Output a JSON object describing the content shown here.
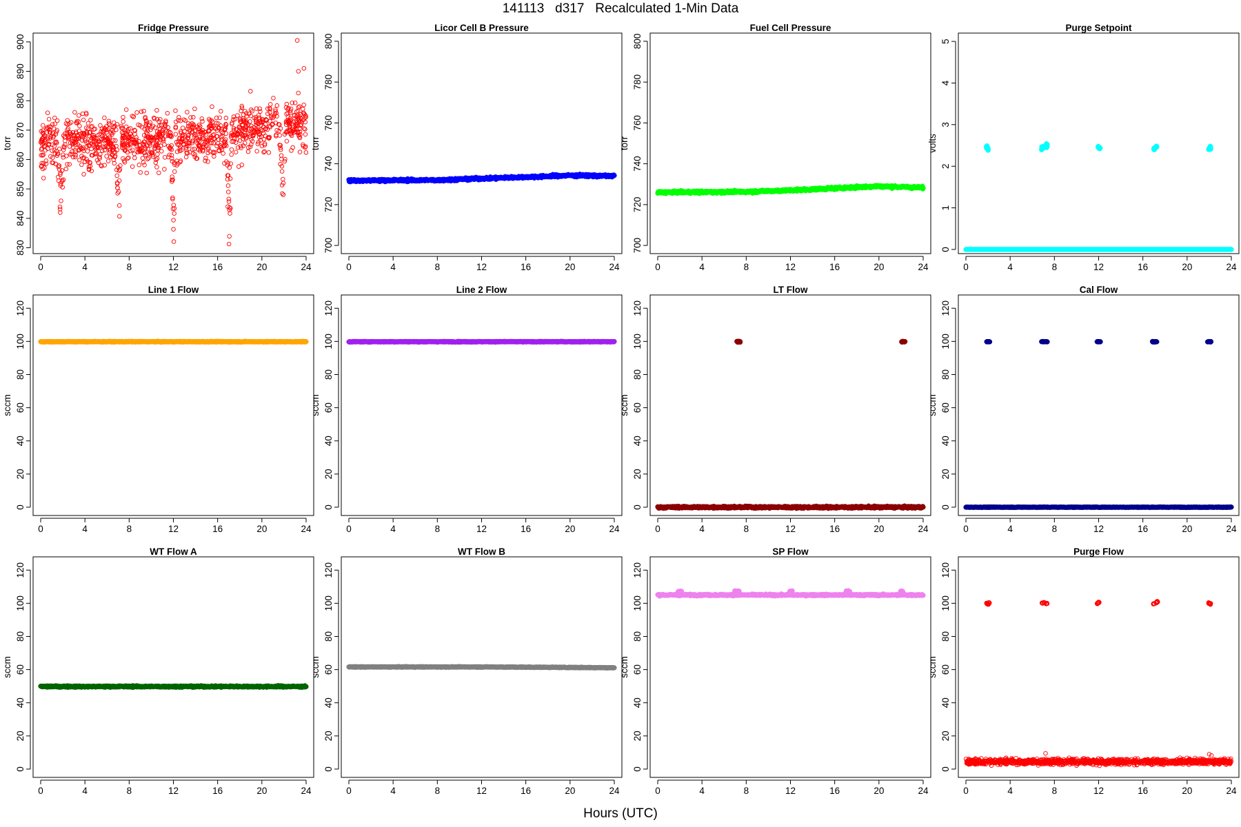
{
  "figure": {
    "title": "141113   d317   Recalculated 1-Min Data",
    "xlabel": "Hours (UTC)"
  },
  "chart_data": [
    {
      "type": "scatter",
      "title": "Fridge Pressure",
      "ylabel": "torr",
      "color": "#ff0000",
      "marker": "open-circle",
      "xlim": [
        0,
        24
      ],
      "xticks": [
        0,
        4,
        8,
        12,
        16,
        20,
        24
      ],
      "ylim": [
        828,
        903
      ],
      "yticks": [
        830,
        840,
        850,
        860,
        870,
        880,
        890,
        900
      ],
      "series": [
        {
          "kind": "noisy",
          "base": [
            [
              0,
              866
            ],
            [
              6,
              866
            ],
            [
              12,
              867
            ],
            [
              16,
              868
            ],
            [
              20,
              872
            ],
            [
              24,
              872
            ]
          ],
          "noise": 6,
          "dips": [
            [
              1.5,
              2.2,
              836
            ],
            [
              6.8,
              7.3,
              835
            ],
            [
              11.8,
              12.2,
              830
            ],
            [
              16.8,
              17.3,
              830
            ],
            [
              21.6,
              22.2,
              837
            ]
          ],
          "extras": [
            [
              23.2,
              900.5
            ],
            [
              23.8,
              891
            ],
            [
              23.3,
              890
            ]
          ]
        }
      ]
    },
    {
      "type": "scatter",
      "title": "Licor Cell B Pressure",
      "ylabel": "torr",
      "color": "#0000ff",
      "marker": "filled",
      "xlim": [
        0,
        24
      ],
      "xticks": [
        0,
        4,
        8,
        12,
        16,
        20,
        24
      ],
      "ylim": [
        696,
        804
      ],
      "yticks": [
        700,
        720,
        740,
        760,
        780,
        800
      ],
      "series": [
        {
          "kind": "line",
          "points": [
            [
              0,
              731.8
            ],
            [
              8,
              732.0
            ],
            [
              12,
              732.8
            ],
            [
              16,
              733.5
            ],
            [
              20,
              734.3
            ],
            [
              24,
              734.0
            ]
          ],
          "noise": 0.4
        }
      ]
    },
    {
      "type": "scatter",
      "title": "Fuel Cell Pressure",
      "ylabel": "torr",
      "color": "#00ff00",
      "marker": "filled",
      "xlim": [
        0,
        24
      ],
      "xticks": [
        0,
        4,
        8,
        12,
        16,
        20,
        24
      ],
      "ylim": [
        696,
        804
      ],
      "yticks": [
        700,
        720,
        740,
        760,
        780,
        800
      ],
      "series": [
        {
          "kind": "line",
          "points": [
            [
              0,
              726.0
            ],
            [
              8,
              726.3
            ],
            [
              12,
              727.0
            ],
            [
              16,
              728.0
            ],
            [
              20,
              729.0
            ],
            [
              24,
              728.3
            ]
          ],
          "noise": 0.4
        }
      ]
    },
    {
      "type": "scatter",
      "title": "Purge Setpoint",
      "ylabel": "volts",
      "color": "#00ffff",
      "marker": "filled",
      "xlim": [
        0,
        24
      ],
      "xticks": [
        0,
        4,
        8,
        12,
        16,
        20,
        24
      ],
      "ylim": [
        -0.1,
        5.2
      ],
      "yticks": [
        0,
        1,
        2,
        3,
        4,
        5
      ],
      "series": [
        {
          "kind": "line",
          "points": [
            [
              0,
              0
            ],
            [
              24,
              0
            ]
          ],
          "noise": 0
        },
        {
          "kind": "clusters",
          "noise": 0.03,
          "points": [
            [
              1.9,
              2.45
            ],
            [
              2.0,
              2.42
            ],
            [
              6.9,
              2.42
            ],
            [
              7.1,
              2.45
            ],
            [
              7.3,
              2.5
            ],
            [
              12.0,
              2.45
            ],
            [
              12.1,
              2.43
            ],
            [
              17.0,
              2.42
            ],
            [
              17.2,
              2.47
            ],
            [
              22.0,
              2.42
            ],
            [
              22.1,
              2.44
            ]
          ]
        }
      ]
    },
    {
      "type": "scatter",
      "title": "Line 1 Flow",
      "ylabel": "sccm",
      "color": "#ffa500",
      "marker": "filled",
      "xlim": [
        0,
        24
      ],
      "xticks": [
        0,
        4,
        8,
        12,
        16,
        20,
        24
      ],
      "ylim": [
        -5,
        128
      ],
      "yticks": [
        0,
        20,
        40,
        60,
        80,
        100,
        120
      ],
      "series": [
        {
          "kind": "line",
          "points": [
            [
              0,
              99.8
            ],
            [
              24,
              99.8
            ]
          ],
          "noise": 0.15
        }
      ]
    },
    {
      "type": "scatter",
      "title": "Line 2 Flow",
      "ylabel": "sccm",
      "color": "#a020f0",
      "marker": "filled",
      "xlim": [
        0,
        24
      ],
      "xticks": [
        0,
        4,
        8,
        12,
        16,
        20,
        24
      ],
      "ylim": [
        -5,
        128
      ],
      "yticks": [
        0,
        20,
        40,
        60,
        80,
        100,
        120
      ],
      "series": [
        {
          "kind": "line",
          "points": [
            [
              0,
              99.8
            ],
            [
              24,
              99.8
            ]
          ],
          "noise": 0.15
        }
      ]
    },
    {
      "type": "scatter",
      "title": "LT Flow",
      "ylabel": "sccm",
      "color": "#8b0000",
      "marker": "filled",
      "xlim": [
        0,
        24
      ],
      "xticks": [
        0,
        4,
        8,
        12,
        16,
        20,
        24
      ],
      "ylim": [
        -5,
        128
      ],
      "yticks": [
        0,
        20,
        40,
        60,
        80,
        100,
        120
      ],
      "series": [
        {
          "kind": "line",
          "points": [
            [
              0,
              0
            ],
            [
              24,
              0
            ]
          ],
          "noise": 0.4
        },
        {
          "kind": "clusters",
          "noise": 0.2,
          "points": [
            [
              7.2,
              99.8
            ],
            [
              7.3,
              99.8
            ],
            [
              7.4,
              99.8
            ],
            [
              22.1,
              99.8
            ],
            [
              22.2,
              99.8
            ],
            [
              22.3,
              99.8
            ]
          ]
        }
      ]
    },
    {
      "type": "scatter",
      "title": "Cal Flow",
      "ylabel": "sccm",
      "color": "#00008b",
      "marker": "filled",
      "xlim": [
        0,
        24
      ],
      "xticks": [
        0,
        4,
        8,
        12,
        16,
        20,
        24
      ],
      "ylim": [
        -5,
        128
      ],
      "yticks": [
        0,
        20,
        40,
        60,
        80,
        100,
        120
      ],
      "series": [
        {
          "kind": "line",
          "points": [
            [
              0,
              0
            ],
            [
              24,
              0
            ]
          ],
          "noise": 0.1
        },
        {
          "kind": "clusters",
          "noise": 0.1,
          "points": [
            [
              1.9,
              99.8
            ],
            [
              2.0,
              99.8
            ],
            [
              2.1,
              99.8
            ],
            [
              6.9,
              99.8
            ],
            [
              7.0,
              99.8
            ],
            [
              7.1,
              99.8
            ],
            [
              7.3,
              99.8
            ],
            [
              11.9,
              99.8
            ],
            [
              12.0,
              99.8
            ],
            [
              12.1,
              99.8
            ],
            [
              16.9,
              99.8
            ],
            [
              17.0,
              99.8
            ],
            [
              17.1,
              99.8
            ],
            [
              17.2,
              99.8
            ],
            [
              21.9,
              99.8
            ],
            [
              22.0,
              99.8
            ],
            [
              22.1,
              99.8
            ]
          ]
        }
      ]
    },
    {
      "type": "scatter",
      "title": "WT Flow A",
      "ylabel": "sccm",
      "color": "#006400",
      "marker": "filled",
      "xlim": [
        0,
        24
      ],
      "xticks": [
        0,
        4,
        8,
        12,
        16,
        20,
        24
      ],
      "ylim": [
        -5,
        128
      ],
      "yticks": [
        0,
        20,
        40,
        60,
        80,
        100,
        120
      ],
      "series": [
        {
          "kind": "line",
          "points": [
            [
              0,
              49.8
            ],
            [
              24,
              49.8
            ]
          ],
          "noise": 0.3
        }
      ]
    },
    {
      "type": "scatter",
      "title": "WT Flow B",
      "ylabel": "sccm",
      "color": "#808080",
      "marker": "filled",
      "xlim": [
        0,
        24
      ],
      "xticks": [
        0,
        4,
        8,
        12,
        16,
        20,
        24
      ],
      "ylim": [
        -5,
        128
      ],
      "yticks": [
        0,
        20,
        40,
        60,
        80,
        100,
        120
      ],
      "series": [
        {
          "kind": "line",
          "points": [
            [
              0,
              61.6
            ],
            [
              12,
              61.6
            ],
            [
              18,
              61.4
            ],
            [
              24,
              61.1
            ]
          ],
          "noise": 0.15
        }
      ]
    },
    {
      "type": "scatter",
      "title": "SP Flow",
      "ylabel": "sccm",
      "color": "#ee82ee",
      "marker": "filled",
      "xlim": [
        0,
        24
      ],
      "xticks": [
        0,
        4,
        8,
        12,
        16,
        20,
        24
      ],
      "ylim": [
        -5,
        128
      ],
      "yticks": [
        0,
        20,
        40,
        60,
        80,
        100,
        120
      ],
      "series": [
        {
          "kind": "line",
          "points": [
            [
              0,
              105
            ],
            [
              24,
              105
            ]
          ],
          "noise": 0.3
        },
        {
          "kind": "clusters",
          "noise": 0.2,
          "points": [
            [
              1.9,
              107
            ],
            [
              2.0,
              107.2
            ],
            [
              2.1,
              107.1
            ],
            [
              7.0,
              107.2
            ],
            [
              7.2,
              107.3
            ],
            [
              7.3,
              107.1
            ],
            [
              12.0,
              107.2
            ],
            [
              12.1,
              107.2
            ],
            [
              17.1,
              107.2
            ],
            [
              17.2,
              107.2
            ],
            [
              17.3,
              107.1
            ],
            [
              22.0,
              107.2
            ],
            [
              22.1,
              107.3
            ]
          ]
        }
      ]
    },
    {
      "type": "scatter",
      "title": "Purge Flow",
      "ylabel": "sccm",
      "color": "#ff0000",
      "marker": "open-circle",
      "xlim": [
        0,
        24
      ],
      "xticks": [
        0,
        4,
        8,
        12,
        16,
        20,
        24
      ],
      "ylim": [
        -5,
        128
      ],
      "yticks": [
        0,
        20,
        40,
        60,
        80,
        100,
        120
      ],
      "series": [
        {
          "kind": "noisy",
          "base": [
            [
              0,
              4.5
            ],
            [
              24,
              4.5
            ]
          ],
          "noise": 1.2,
          "dips": [],
          "extras": [
            [
              7.2,
              9.5
            ],
            [
              22.0,
              9
            ],
            [
              22.2,
              8.2
            ]
          ]
        },
        {
          "kind": "clusters",
          "noise": 0.3,
          "points": [
            [
              1.9,
              100
            ],
            [
              2.0,
              99.6
            ],
            [
              2.1,
              100.3
            ],
            [
              6.9,
              100.1
            ],
            [
              7.1,
              100.4
            ],
            [
              7.3,
              99.9
            ],
            [
              11.9,
              99.8
            ],
            [
              12.0,
              100.5
            ],
            [
              17.0,
              99.7
            ],
            [
              17.2,
              100.4
            ],
            [
              17.3,
              101
            ],
            [
              22.0,
              100.2
            ],
            [
              22.1,
              99.7
            ]
          ]
        }
      ]
    }
  ]
}
